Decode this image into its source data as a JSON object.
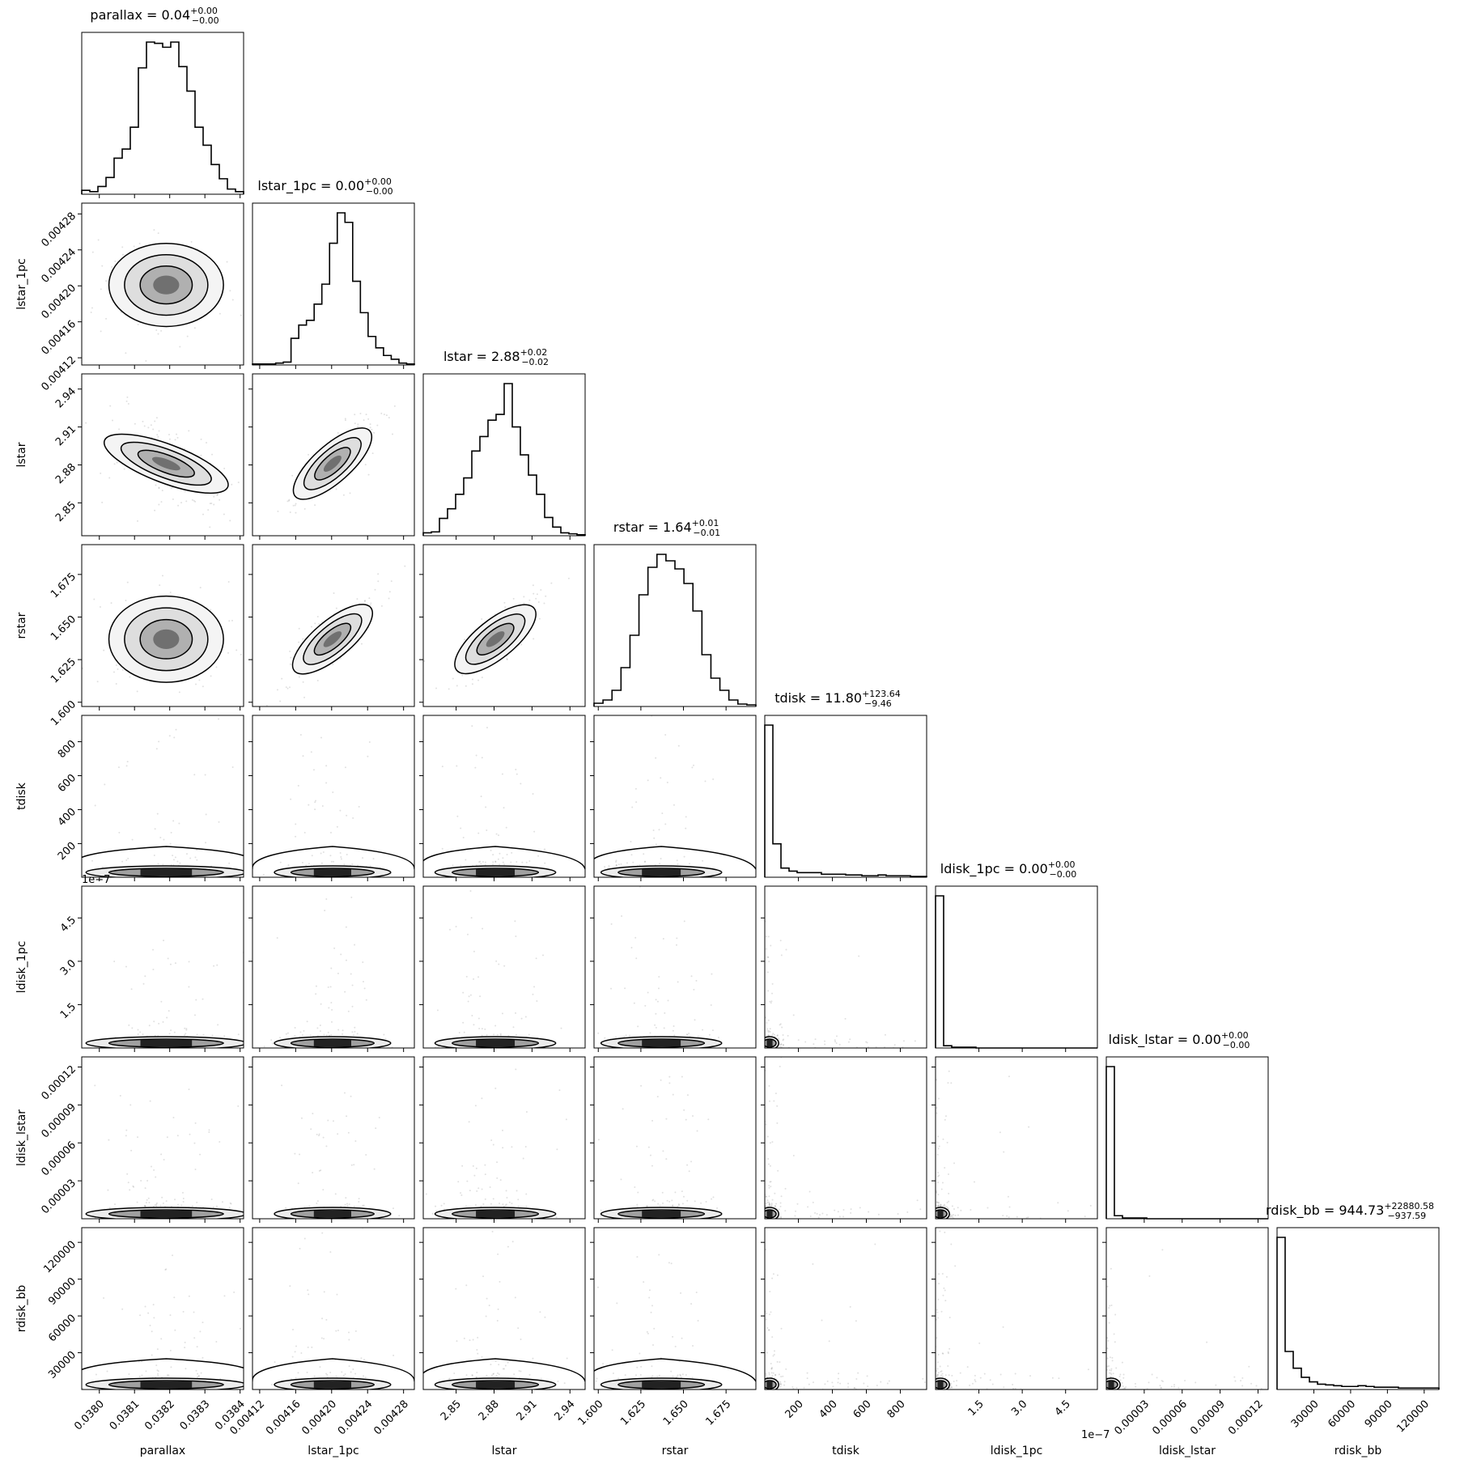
{
  "chart_data": {
    "type": "corner",
    "parameters": [
      {
        "name": "parallax",
        "xlabel": "parallax",
        "ylabel": "",
        "title": {
          "prefix": "parallax = 0.04",
          "sup": "+0.00",
          "sub": "−0.00"
        },
        "range": [
          0.03795,
          0.03841
        ],
        "ticks": [
          0.038,
          0.0381,
          0.0382,
          0.0383,
          0.0384
        ],
        "tick_labels": [
          "0.0380",
          "0.0381",
          "0.0382",
          "0.0383",
          "0.0384"
        ],
        "mean": 0.03819,
        "sd": 7.4e-05,
        "hist_shape": "gauss"
      },
      {
        "name": "lstar_1pc",
        "xlabel": "lstar_1pc",
        "ylabel": "lstar_1pc",
        "title": {
          "prefix": "lstar_1pc = 0.00",
          "sup": "+0.00",
          "sub": "−0.00"
        },
        "range": [
          0.004112,
          0.004292
        ],
        "ticks": [
          0.00412,
          0.00416,
          0.0042,
          0.00424,
          0.00428
        ],
        "tick_labels": [
          "0.00412",
          "0.00416",
          "0.00420",
          "0.00424",
          "0.00428"
        ],
        "mean": 0.004201,
        "sd": 2.1e-05,
        "hist_shape": "gauss"
      },
      {
        "name": "lstar",
        "xlabel": "lstar",
        "ylabel": "lstar",
        "title": {
          "prefix": "lstar = 2.88",
          "sup": "+0.02",
          "sub": "−0.02"
        },
        "range": [
          2.824,
          2.952
        ],
        "ticks": [
          2.85,
          2.88,
          2.91,
          2.94
        ],
        "tick_labels": [
          "2.85",
          "2.88",
          "2.91",
          "2.94"
        ],
        "mean": 2.881,
        "sd": 0.0155,
        "hist_shape": "gauss"
      },
      {
        "name": "rstar",
        "xlabel": "rstar",
        "ylabel": "rstar",
        "title": {
          "prefix": "rstar = 1.64",
          "sup": "+0.01",
          "sub": "−0.01"
        },
        "range": [
          1.5975,
          1.6925
        ],
        "ticks": [
          1.6,
          1.625,
          1.65,
          1.675
        ],
        "tick_labels": [
          "1.600",
          "1.625",
          "1.650",
          "1.675"
        ],
        "mean": 1.637,
        "sd": 0.0115,
        "hist_shape": "gauss"
      },
      {
        "name": "tdisk",
        "xlabel": "tdisk",
        "ylabel": "tdisk",
        "title": {
          "prefix": "tdisk = 11.80",
          "sup": "+123.64",
          "sub": "−9.46"
        },
        "range": [
          2,
          955
        ],
        "ticks": [
          200,
          400,
          600,
          800
        ],
        "tick_labels": [
          "200",
          "400",
          "600",
          "800"
        ],
        "mean": 20,
        "sd": 60,
        "hist_shape": "skew"
      },
      {
        "name": "ldisk_1pc",
        "xlabel": "ldisk_1pc",
        "ylabel": "ldisk_1pc",
        "title": {
          "prefix": "ldisk_1pc = 0.00",
          "sup": "+0.00",
          "sub": "−0.00"
        },
        "range": [
          0.0,
          5.6
        ],
        "ticks": [
          1.5,
          3.0,
          4.5
        ],
        "tick_labels": [
          "1.5",
          "3.0",
          "4.5"
        ],
        "offset_label": "1e−7",
        "mean": 0.1,
        "sd": 0.3,
        "hist_shape": "skew"
      },
      {
        "name": "ldisk_lstar",
        "xlabel": "ldisk_lstar",
        "ylabel": "ldisk_lstar",
        "title": {
          "prefix": "ldisk_lstar = 0.00",
          "sup": "+0.00",
          "sub": "−0.00"
        },
        "range": [
          0.0,
          0.000128
        ],
        "ticks": [
          3e-05,
          6e-05,
          9e-05,
          0.00012
        ],
        "tick_labels": [
          "0.00003",
          "0.00006",
          "0.00009",
          "0.00012"
        ],
        "mean": 3e-06,
        "sd": 8e-06,
        "hist_shape": "skew"
      },
      {
        "name": "rdisk_bb",
        "xlabel": "rdisk_bb",
        "ylabel": "rdisk_bb",
        "title": {
          "prefix": "rdisk_bb = 944.73",
          "sup": "+22880.58",
          "sub": "−937.59"
        },
        "range": [
          4,
          132000
        ],
        "ticks": [
          30000,
          60000,
          90000,
          120000
        ],
        "tick_labels": [
          "30000",
          "60000",
          "90000",
          "120000"
        ],
        "mean": 2000,
        "sd": 8000,
        "hist_shape": "skew"
      }
    ],
    "y_ticks": {
      "lstar_1pc": {
        "ticks": [
          0.00412,
          0.00416,
          0.0042,
          0.00424,
          0.00428
        ],
        "tick_labels": [
          "0.00412",
          "0.00416",
          "0.00420",
          "0.00424",
          "0.00428"
        ]
      },
      "lstar": {
        "ticks": [
          2.85,
          2.88,
          2.91,
          2.94
        ],
        "tick_labels": [
          "2.85",
          "2.88",
          "2.91",
          "2.94"
        ]
      },
      "rstar": {
        "ticks": [
          1.6,
          1.625,
          1.65,
          1.675
        ],
        "tick_labels": [
          "1.600",
          "1.625",
          "1.650",
          "1.675"
        ]
      },
      "tdisk": {
        "ticks": [
          200,
          400,
          600,
          800
        ],
        "tick_labels": [
          "200",
          "400",
          "600",
          "800"
        ]
      },
      "ldisk_1pc": {
        "ticks": [
          1.5,
          3.0,
          4.5
        ],
        "tick_labels": [
          "1.5",
          "3.0",
          "4.5"
        ],
        "offset_label": "1e−7"
      },
      "ldisk_lstar": {
        "ticks": [
          3e-05,
          6e-05,
          9e-05,
          0.00012
        ],
        "tick_labels": [
          "0.00003",
          "0.00006",
          "0.00009",
          "0.00012"
        ]
      },
      "rdisk_bb": {
        "ticks": [
          30000,
          60000,
          90000,
          120000
        ],
        "tick_labels": [
          "30000",
          "60000",
          "90000",
          "120000"
        ]
      }
    },
    "grid": false,
    "histogram_counts": {
      "parallax": [
        3,
        2,
        6,
        13,
        28,
        35,
        52,
        98,
        118,
        117,
        114,
        118,
        99,
        80,
        52,
        38,
        23,
        12,
        4,
        2
      ],
      "lstar_1pc": [
        1,
        1,
        1,
        2,
        3,
        28,
        42,
        47,
        64,
        85,
        128,
        160,
        150,
        88,
        55,
        30,
        18,
        10,
        6,
        2,
        1
      ],
      "lstar": [
        3,
        4,
        18,
        28,
        43,
        60,
        88,
        103,
        120,
        126,
        158,
        113,
        84,
        63,
        43,
        19,
        9,
        3,
        2,
        1
      ],
      "rstar": [
        4,
        8,
        20,
        48,
        88,
        138,
        172,
        188,
        180,
        170,
        152,
        118,
        64,
        35,
        20,
        8,
        3,
        2
      ],
      "tdisk": [
        100,
        22,
        6,
        4,
        3,
        3,
        3,
        2,
        2,
        2,
        1.5,
        1.5,
        1,
        1,
        1.5,
        1,
        1,
        1,
        0.5,
        0.5
      ],
      "ldisk_1pc": [
        100,
        1.5,
        0.5,
        0.5,
        0.5,
        0,
        0,
        0,
        0,
        0,
        0,
        0,
        0,
        0,
        0,
        0,
        0,
        0,
        0,
        0
      ],
      "ldisk_lstar": [
        100,
        2,
        0.5,
        0.5,
        0.5,
        0,
        0,
        0,
        0,
        0,
        0,
        0,
        0,
        0,
        0,
        0,
        0,
        0,
        0,
        0
      ],
      "rdisk_bb": [
        100,
        25,
        14,
        8,
        5,
        3.5,
        3,
        2.5,
        2,
        2,
        2.5,
        2,
        1.5,
        1.5,
        1.5,
        1,
        1,
        1,
        1,
        1
      ]
    }
  }
}
